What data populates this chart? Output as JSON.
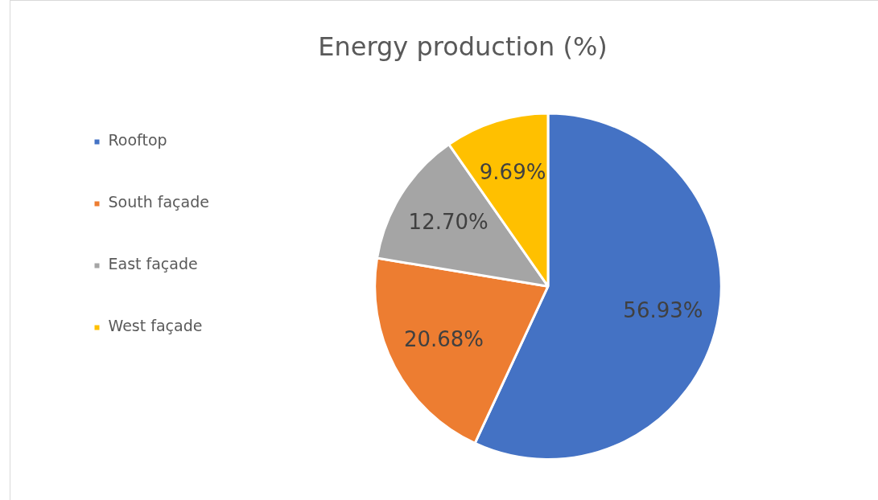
{
  "chart_data": {
    "type": "pie",
    "title": "Energy production (%)",
    "categories": [
      "Rooftop",
      "South façade",
      "East façade",
      "West façade"
    ],
    "values": [
      56.93,
      20.68,
      12.7,
      9.69
    ],
    "colors": [
      "#4472c4",
      "#ed7d31",
      "#a5a5a5",
      "#ffc000"
    ],
    "value_labels": [
      "56.93%",
      "20.68%",
      "12.70%",
      "9.69%"
    ],
    "legend": "left"
  }
}
